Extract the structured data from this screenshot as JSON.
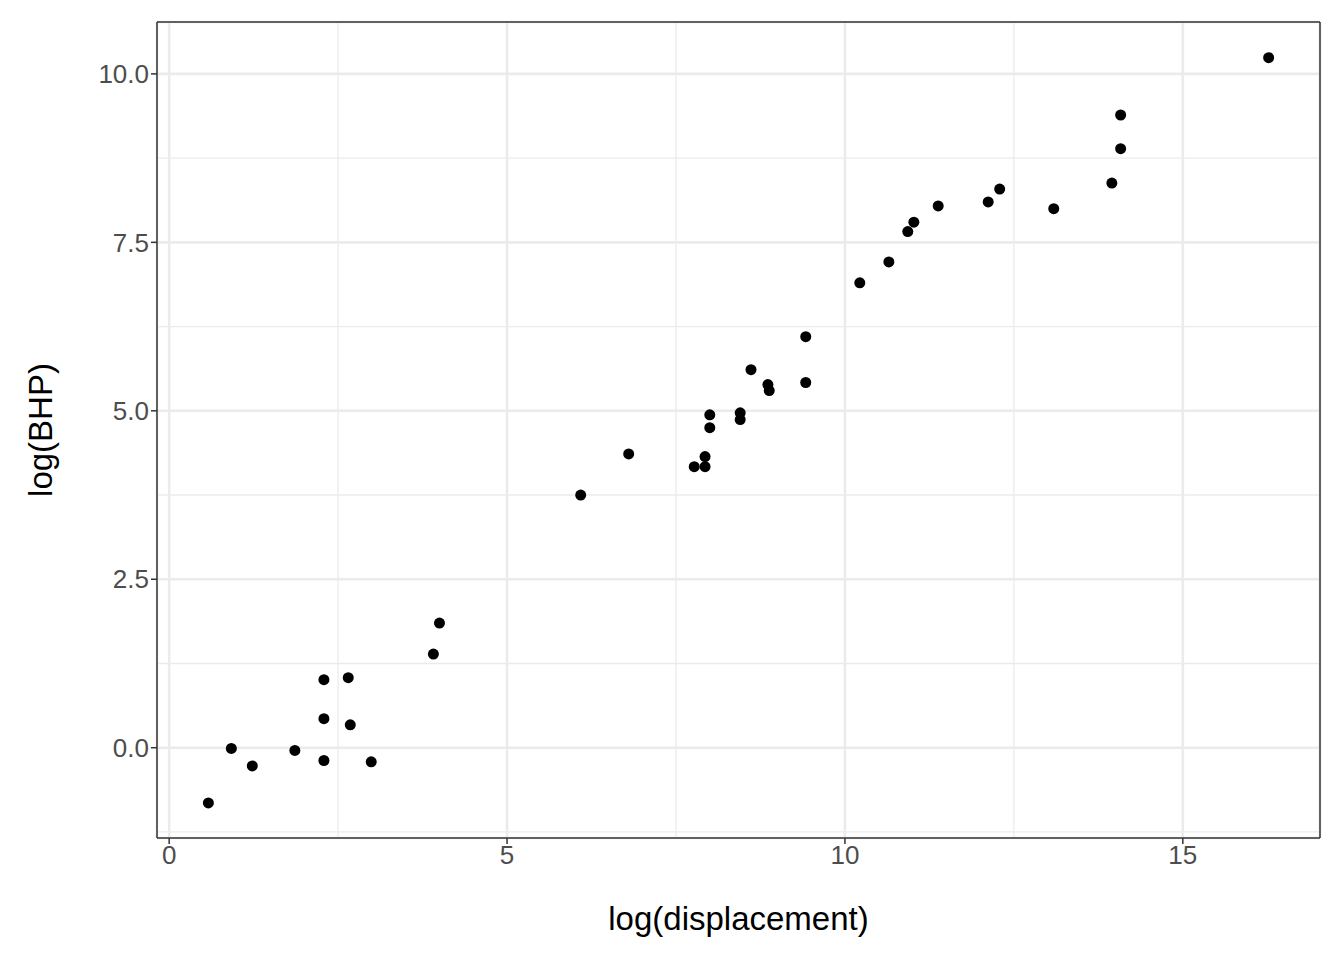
{
  "chart_data": {
    "type": "scatter",
    "x_label": "log(displacement)",
    "y_label": "log(BHP)",
    "x": [
      0.58,
      0.92,
      1.23,
      1.86,
      2.29,
      2.29,
      2.29,
      2.65,
      2.68,
      2.99,
      3.91,
      4.0,
      6.09,
      6.8,
      7.77,
      7.93,
      7.93,
      8.0,
      8.0,
      8.45,
      8.45,
      8.61,
      8.86,
      8.88,
      9.42,
      9.42,
      10.22,
      10.65,
      10.93,
      11.02,
      11.38,
      12.12,
      12.29,
      13.09,
      13.95,
      14.08,
      14.08,
      16.27
    ],
    "values": [
      -0.82,
      -0.01,
      -0.27,
      -0.04,
      1.01,
      0.43,
      -0.19,
      1.04,
      0.34,
      -0.21,
      1.39,
      1.85,
      3.75,
      4.36,
      4.17,
      4.32,
      4.17,
      4.94,
      4.75,
      4.97,
      4.87,
      5.61,
      5.39,
      5.3,
      6.1,
      5.42,
      6.9,
      7.21,
      7.66,
      7.8,
      8.04,
      8.1,
      8.29,
      8.0,
      8.38,
      8.89,
      9.39,
      10.24
    ],
    "color": "#000000",
    "marker": "circle",
    "xlim": [
      -0.18,
      17.03
    ],
    "ylim": [
      -1.34,
      10.77
    ],
    "xticks": [
      0,
      5,
      10,
      15
    ],
    "yticks": [
      {
        "value": 0,
        "label": "0.0"
      },
      {
        "value": 2.5,
        "label": "2.5"
      },
      {
        "value": 5,
        "label": "5.0"
      },
      {
        "value": 7.5,
        "label": "7.5"
      },
      {
        "value": 10,
        "label": "10.0"
      }
    ],
    "grid": true
  }
}
